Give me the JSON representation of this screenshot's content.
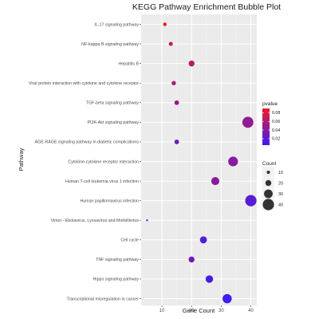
{
  "chart_data": {
    "type": "scatter",
    "title": "KEGG Pathway Enrichment Bubble Plot",
    "xlabel": "Gene Count",
    "ylabel": "Pathway",
    "xlim": [
      3,
      42
    ],
    "x_ticks": [
      "10",
      "20",
      "30",
      "40"
    ],
    "x_tick_values": [
      10,
      20,
      30,
      40
    ],
    "grid": true,
    "legend_placement": "right",
    "points": [
      {
        "pathway": "IL-17 signaling pathway",
        "count": 11,
        "pvalue": 0.088
      },
      {
        "pathway": "NF-kappa B signaling pathway",
        "count": 13,
        "pvalue": 0.068
      },
      {
        "pathway": "Hepatitis B",
        "count": 20,
        "pvalue": 0.062
      },
      {
        "pathway": "Viral protein interaction with cytokine and cytokine receptor",
        "count": 14,
        "pvalue": 0.058
      },
      {
        "pathway": "TGF-beta signaling pathway",
        "count": 15,
        "pvalue": 0.048
      },
      {
        "pathway": "PI3K-Akt signaling pathway",
        "count": 39,
        "pvalue": 0.045
      },
      {
        "pathway": "AGE-RAGE signaling pathway in diabetic complications",
        "count": 15,
        "pvalue": 0.028
      },
      {
        "pathway": "Cytokine-cytokine receptor interaction",
        "count": 34,
        "pvalue": 0.04
      },
      {
        "pathway": "Human T-cell leukemia virus 1 infection",
        "count": 28,
        "pvalue": 0.04
      },
      {
        "pathway": "Human papillomavirus infection",
        "count": 40,
        "pvalue": 0.018
      },
      {
        "pathway": "Virion - Ebolavirus, Lyssavirus and Morbillivirus",
        "count": 5,
        "pvalue": 0.014
      },
      {
        "pathway": "Cell cycle",
        "count": 24,
        "pvalue": 0.014
      },
      {
        "pathway": "TNF signaling pathway",
        "count": 20,
        "pvalue": 0.03
      },
      {
        "pathway": "Hippo signaling pathway",
        "count": 26,
        "pvalue": 0.01
      },
      {
        "pathway": "Transcriptional misregulation in cancer",
        "count": 32,
        "pvalue": 0.008
      }
    ],
    "color_legend": {
      "title": "pvalue",
      "range": [
        0.005,
        0.09
      ],
      "ticks": [
        0.02,
        0.04,
        0.06,
        0.08
      ],
      "labels": [
        "0.02",
        "0.04",
        "0.06",
        "0.08"
      ],
      "colors": {
        "high": "#ee1c25",
        "low": "#3d1cf5"
      }
    },
    "size_legend": {
      "title": "Count",
      "values": [
        10,
        20,
        30,
        40
      ],
      "labels": [
        "10",
        "20",
        "30",
        "40"
      ]
    }
  }
}
